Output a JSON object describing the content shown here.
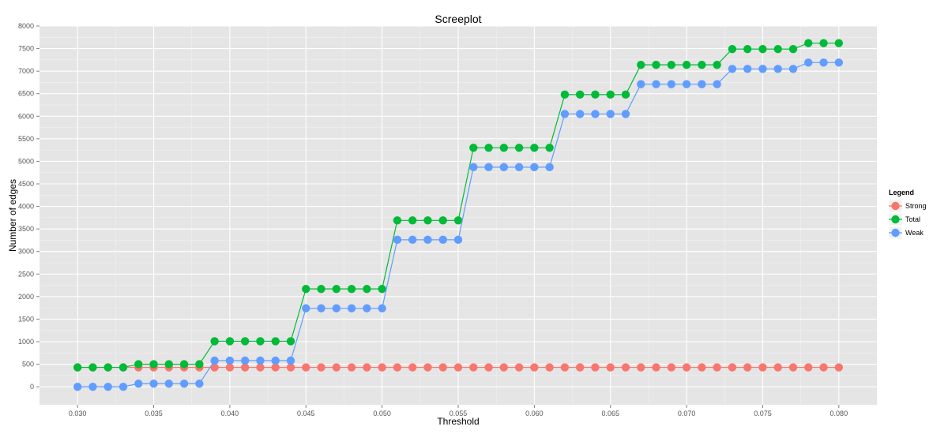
{
  "chart_data": {
    "type": "line",
    "title": "Screeplot",
    "xlabel": "Threshold",
    "ylabel": "Number of edges",
    "xlim": [
      0.0275,
      0.0825
    ],
    "ylim": [
      -400,
      8000
    ],
    "x_ticks": [
      "0.030",
      "0.035",
      "0.040",
      "0.045",
      "0.050",
      "0.055",
      "0.060",
      "0.065",
      "0.070",
      "0.075",
      "0.080"
    ],
    "y_ticks": [
      "0",
      "500",
      "1000",
      "1500",
      "2000",
      "2500",
      "3000",
      "3500",
      "4000",
      "4500",
      "5000",
      "5500",
      "6000",
      "6500",
      "7000",
      "7500",
      "8000"
    ],
    "grid": true,
    "legend": {
      "title": "Legend",
      "position": "right"
    },
    "x": [
      0.03,
      0.031,
      0.032,
      0.033,
      0.034,
      0.035,
      0.036,
      0.037,
      0.038,
      0.039,
      0.04,
      0.041,
      0.042,
      0.043,
      0.044,
      0.045,
      0.046,
      0.047,
      0.048,
      0.049,
      0.05,
      0.051,
      0.052,
      0.053,
      0.054,
      0.055,
      0.056,
      0.057,
      0.058,
      0.059,
      0.06,
      0.061,
      0.062,
      0.063,
      0.064,
      0.065,
      0.066,
      0.067,
      0.068,
      0.069,
      0.07,
      0.071,
      0.072,
      0.073,
      0.074,
      0.075,
      0.076,
      0.077,
      0.078,
      0.079,
      0.08
    ],
    "series": [
      {
        "name": "Strong",
        "color": "#F8766D",
        "values": [
          430,
          430,
          430,
          430,
          430,
          430,
          430,
          430,
          430,
          430,
          430,
          430,
          430,
          430,
          430,
          430,
          430,
          430,
          430,
          430,
          430,
          430,
          430,
          430,
          430,
          430,
          430,
          430,
          430,
          430,
          430,
          430,
          430,
          430,
          430,
          430,
          430,
          430,
          430,
          430,
          430,
          430,
          430,
          430,
          430,
          430,
          430,
          430,
          430,
          430,
          430
        ]
      },
      {
        "name": "Total",
        "color": "#00BA38",
        "values": [
          430,
          430,
          430,
          430,
          500,
          500,
          500,
          500,
          500,
          1010,
          1010,
          1010,
          1010,
          1010,
          1010,
          2170,
          2170,
          2170,
          2170,
          2170,
          2170,
          3690,
          3690,
          3690,
          3690,
          3690,
          5300,
          5300,
          5300,
          5300,
          5300,
          5300,
          6480,
          6480,
          6480,
          6480,
          6480,
          7140,
          7140,
          7140,
          7140,
          7140,
          7140,
          7490,
          7490,
          7490,
          7490,
          7490,
          7620,
          7620,
          7620
        ]
      },
      {
        "name": "Weak",
        "color": "#619CFF",
        "values": [
          0,
          0,
          0,
          0,
          70,
          70,
          70,
          70,
          70,
          580,
          580,
          580,
          580,
          580,
          580,
          1740,
          1740,
          1740,
          1740,
          1740,
          1740,
          3260,
          3260,
          3260,
          3260,
          3260,
          4870,
          4870,
          4870,
          4870,
          4870,
          4870,
          6050,
          6050,
          6050,
          6050,
          6050,
          6710,
          6710,
          6710,
          6710,
          6710,
          6710,
          7050,
          7050,
          7050,
          7050,
          7050,
          7190,
          7190,
          7190
        ]
      }
    ]
  }
}
